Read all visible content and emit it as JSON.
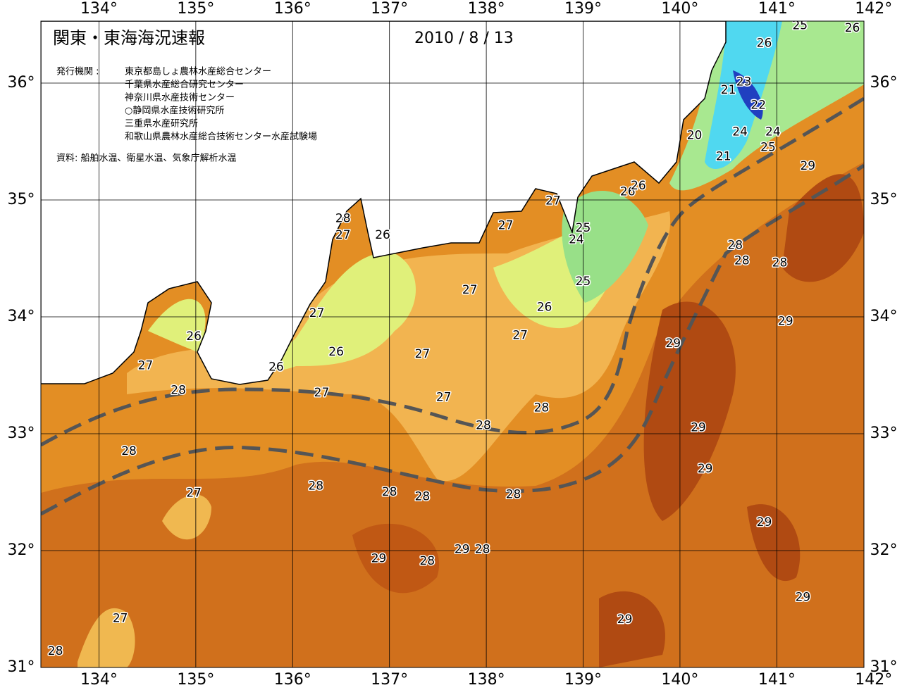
{
  "header": {
    "title": "関東・東海海況速報",
    "date": "2010 / 8 / 13",
    "agency_label": "発行機関 :",
    "agencies": [
      "東京都島しょ農林水産総合センター",
      "千葉県水産総合研究センター",
      "神奈川県水産技術センター",
      "○静岡県水産技術研究所",
      "三重県水産研究所",
      "和歌山県農林水産総合技術センター水産試験場"
    ],
    "source": "資料: 船舶水温、衛星水温、気象庁解析水温"
  },
  "map": {
    "xlim": [
      133.4,
      141.9
    ],
    "ylim": [
      31,
      36.53
    ],
    "xticks": [
      {
        "value": 134,
        "label": "134°"
      },
      {
        "value": 135,
        "label": "135°"
      },
      {
        "value": 136,
        "label": "136°"
      },
      {
        "value": 137,
        "label": "137°"
      },
      {
        "value": 138,
        "label": "138°"
      },
      {
        "value": 139,
        "label": "139°"
      },
      {
        "value": 140,
        "label": "140°"
      },
      {
        "value": 141,
        "label": "141°"
      },
      {
        "value": 142,
        "label": "142°"
      }
    ],
    "yticks": [
      {
        "value": 31,
        "label": "31°"
      },
      {
        "value": 32,
        "label": "32°"
      },
      {
        "value": 33,
        "label": "33°"
      },
      {
        "value": 34,
        "label": "34°"
      },
      {
        "value": 35,
        "label": "35°"
      },
      {
        "value": 36,
        "label": "36°"
      }
    ],
    "contour_labels": [
      {
        "lon": 141.24,
        "lat": 36.49,
        "value": 25
      },
      {
        "lon": 141.78,
        "lat": 36.47,
        "value": 26
      },
      {
        "lon": 140.87,
        "lat": 36.34,
        "value": 26
      },
      {
        "lon": 140.66,
        "lat": 36.01,
        "value": 23
      },
      {
        "lon": 140.5,
        "lat": 35.94,
        "value": 21
      },
      {
        "lon": 140.81,
        "lat": 35.81,
        "value": 22
      },
      {
        "lon": 140.62,
        "lat": 35.58,
        "value": 24
      },
      {
        "lon": 140.96,
        "lat": 35.58,
        "value": 24
      },
      {
        "lon": 140.15,
        "lat": 35.55,
        "value": 20
      },
      {
        "lon": 140.91,
        "lat": 35.45,
        "value": 25
      },
      {
        "lon": 140.45,
        "lat": 35.37,
        "value": 21
      },
      {
        "lon": 141.32,
        "lat": 35.29,
        "value": 29
      },
      {
        "lon": 139.46,
        "lat": 35.07,
        "value": 26
      },
      {
        "lon": 139.57,
        "lat": 35.12,
        "value": 26
      },
      {
        "lon": 138.69,
        "lat": 34.99,
        "value": 27
      },
      {
        "lon": 136.52,
        "lat": 34.84,
        "value": 28
      },
      {
        "lon": 136.52,
        "lat": 34.7,
        "value": 27
      },
      {
        "lon": 136.93,
        "lat": 34.7,
        "value": 26
      },
      {
        "lon": 138.2,
        "lat": 34.78,
        "value": 27
      },
      {
        "lon": 139.0,
        "lat": 34.76,
        "value": 25
      },
      {
        "lon": 138.93,
        "lat": 34.66,
        "value": 24
      },
      {
        "lon": 140.57,
        "lat": 34.61,
        "value": 28
      },
      {
        "lon": 140.64,
        "lat": 34.48,
        "value": 28
      },
      {
        "lon": 141.03,
        "lat": 34.46,
        "value": 28
      },
      {
        "lon": 139.0,
        "lat": 34.3,
        "value": 25
      },
      {
        "lon": 137.83,
        "lat": 34.23,
        "value": 27
      },
      {
        "lon": 138.6,
        "lat": 34.08,
        "value": 26
      },
      {
        "lon": 136.25,
        "lat": 34.03,
        "value": 27
      },
      {
        "lon": 141.09,
        "lat": 33.96,
        "value": 29
      },
      {
        "lon": 138.35,
        "lat": 33.84,
        "value": 27
      },
      {
        "lon": 134.98,
        "lat": 33.83,
        "value": 26
      },
      {
        "lon": 139.93,
        "lat": 33.77,
        "value": 29
      },
      {
        "lon": 136.45,
        "lat": 33.7,
        "value": 26
      },
      {
        "lon": 137.34,
        "lat": 33.68,
        "value": 27
      },
      {
        "lon": 134.48,
        "lat": 33.58,
        "value": 27
      },
      {
        "lon": 135.83,
        "lat": 33.57,
        "value": 26
      },
      {
        "lon": 134.82,
        "lat": 33.37,
        "value": 28
      },
      {
        "lon": 136.3,
        "lat": 33.35,
        "value": 27
      },
      {
        "lon": 137.56,
        "lat": 33.31,
        "value": 27
      },
      {
        "lon": 138.57,
        "lat": 33.22,
        "value": 28
      },
      {
        "lon": 137.97,
        "lat": 33.07,
        "value": 28
      },
      {
        "lon": 140.19,
        "lat": 33.05,
        "value": 29
      },
      {
        "lon": 134.31,
        "lat": 32.85,
        "value": 28
      },
      {
        "lon": 140.26,
        "lat": 32.7,
        "value": 29
      },
      {
        "lon": 136.24,
        "lat": 32.55,
        "value": 28
      },
      {
        "lon": 137.0,
        "lat": 32.5,
        "value": 28
      },
      {
        "lon": 137.34,
        "lat": 32.46,
        "value": 28
      },
      {
        "lon": 138.28,
        "lat": 32.48,
        "value": 28
      },
      {
        "lon": 134.98,
        "lat": 32.49,
        "value": 27
      },
      {
        "lon": 140.87,
        "lat": 32.24,
        "value": 29
      },
      {
        "lon": 137.75,
        "lat": 32.01,
        "value": 29
      },
      {
        "lon": 137.96,
        "lat": 32.01,
        "value": 28
      },
      {
        "lon": 136.89,
        "lat": 31.93,
        "value": 29
      },
      {
        "lon": 137.39,
        "lat": 31.91,
        "value": 28
      },
      {
        "lon": 141.27,
        "lat": 31.6,
        "value": 29
      },
      {
        "lon": 139.43,
        "lat": 31.41,
        "value": 29
      },
      {
        "lon": 134.22,
        "lat": 31.42,
        "value": 27
      },
      {
        "lon": 133.55,
        "lat": 31.14,
        "value": 28
      }
    ]
  }
}
